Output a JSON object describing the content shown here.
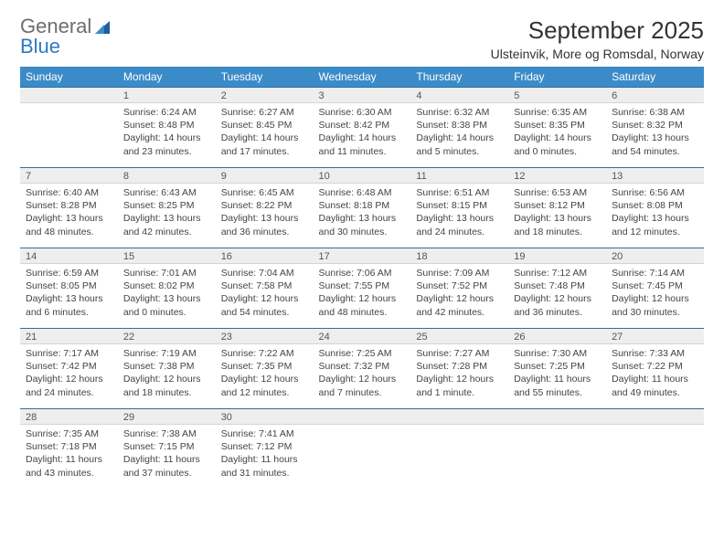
{
  "logo": {
    "word1": "General",
    "word2": "Blue"
  },
  "header": {
    "month_title": "September 2025",
    "location": "Ulsteinvik, More og Romsdal, Norway"
  },
  "colors": {
    "header_bg": "#3b8bc9",
    "header_text": "#ffffff",
    "daynum_bg": "#eeeeee",
    "daynum_border_top": "#2c6fa6",
    "logo_gray": "#6d6d6d",
    "logo_blue": "#2c7ac0"
  },
  "weekdays": [
    "Sunday",
    "Monday",
    "Tuesday",
    "Wednesday",
    "Thursday",
    "Friday",
    "Saturday"
  ],
  "weeks": [
    [
      {
        "n": "",
        "sr": "",
        "ss": "",
        "dl": ""
      },
      {
        "n": "1",
        "sr": "Sunrise: 6:24 AM",
        "ss": "Sunset: 8:48 PM",
        "dl": "Daylight: 14 hours and 23 minutes."
      },
      {
        "n": "2",
        "sr": "Sunrise: 6:27 AM",
        "ss": "Sunset: 8:45 PM",
        "dl": "Daylight: 14 hours and 17 minutes."
      },
      {
        "n": "3",
        "sr": "Sunrise: 6:30 AM",
        "ss": "Sunset: 8:42 PM",
        "dl": "Daylight: 14 hours and 11 minutes."
      },
      {
        "n": "4",
        "sr": "Sunrise: 6:32 AM",
        "ss": "Sunset: 8:38 PM",
        "dl": "Daylight: 14 hours and 5 minutes."
      },
      {
        "n": "5",
        "sr": "Sunrise: 6:35 AM",
        "ss": "Sunset: 8:35 PM",
        "dl": "Daylight: 14 hours and 0 minutes."
      },
      {
        "n": "6",
        "sr": "Sunrise: 6:38 AM",
        "ss": "Sunset: 8:32 PM",
        "dl": "Daylight: 13 hours and 54 minutes."
      }
    ],
    [
      {
        "n": "7",
        "sr": "Sunrise: 6:40 AM",
        "ss": "Sunset: 8:28 PM",
        "dl": "Daylight: 13 hours and 48 minutes."
      },
      {
        "n": "8",
        "sr": "Sunrise: 6:43 AM",
        "ss": "Sunset: 8:25 PM",
        "dl": "Daylight: 13 hours and 42 minutes."
      },
      {
        "n": "9",
        "sr": "Sunrise: 6:45 AM",
        "ss": "Sunset: 8:22 PM",
        "dl": "Daylight: 13 hours and 36 minutes."
      },
      {
        "n": "10",
        "sr": "Sunrise: 6:48 AM",
        "ss": "Sunset: 8:18 PM",
        "dl": "Daylight: 13 hours and 30 minutes."
      },
      {
        "n": "11",
        "sr": "Sunrise: 6:51 AM",
        "ss": "Sunset: 8:15 PM",
        "dl": "Daylight: 13 hours and 24 minutes."
      },
      {
        "n": "12",
        "sr": "Sunrise: 6:53 AM",
        "ss": "Sunset: 8:12 PM",
        "dl": "Daylight: 13 hours and 18 minutes."
      },
      {
        "n": "13",
        "sr": "Sunrise: 6:56 AM",
        "ss": "Sunset: 8:08 PM",
        "dl": "Daylight: 13 hours and 12 minutes."
      }
    ],
    [
      {
        "n": "14",
        "sr": "Sunrise: 6:59 AM",
        "ss": "Sunset: 8:05 PM",
        "dl": "Daylight: 13 hours and 6 minutes."
      },
      {
        "n": "15",
        "sr": "Sunrise: 7:01 AM",
        "ss": "Sunset: 8:02 PM",
        "dl": "Daylight: 13 hours and 0 minutes."
      },
      {
        "n": "16",
        "sr": "Sunrise: 7:04 AM",
        "ss": "Sunset: 7:58 PM",
        "dl": "Daylight: 12 hours and 54 minutes."
      },
      {
        "n": "17",
        "sr": "Sunrise: 7:06 AM",
        "ss": "Sunset: 7:55 PM",
        "dl": "Daylight: 12 hours and 48 minutes."
      },
      {
        "n": "18",
        "sr": "Sunrise: 7:09 AM",
        "ss": "Sunset: 7:52 PM",
        "dl": "Daylight: 12 hours and 42 minutes."
      },
      {
        "n": "19",
        "sr": "Sunrise: 7:12 AM",
        "ss": "Sunset: 7:48 PM",
        "dl": "Daylight: 12 hours and 36 minutes."
      },
      {
        "n": "20",
        "sr": "Sunrise: 7:14 AM",
        "ss": "Sunset: 7:45 PM",
        "dl": "Daylight: 12 hours and 30 minutes."
      }
    ],
    [
      {
        "n": "21",
        "sr": "Sunrise: 7:17 AM",
        "ss": "Sunset: 7:42 PM",
        "dl": "Daylight: 12 hours and 24 minutes."
      },
      {
        "n": "22",
        "sr": "Sunrise: 7:19 AM",
        "ss": "Sunset: 7:38 PM",
        "dl": "Daylight: 12 hours and 18 minutes."
      },
      {
        "n": "23",
        "sr": "Sunrise: 7:22 AM",
        "ss": "Sunset: 7:35 PM",
        "dl": "Daylight: 12 hours and 12 minutes."
      },
      {
        "n": "24",
        "sr": "Sunrise: 7:25 AM",
        "ss": "Sunset: 7:32 PM",
        "dl": "Daylight: 12 hours and 7 minutes."
      },
      {
        "n": "25",
        "sr": "Sunrise: 7:27 AM",
        "ss": "Sunset: 7:28 PM",
        "dl": "Daylight: 12 hours and 1 minute."
      },
      {
        "n": "26",
        "sr": "Sunrise: 7:30 AM",
        "ss": "Sunset: 7:25 PM",
        "dl": "Daylight: 11 hours and 55 minutes."
      },
      {
        "n": "27",
        "sr": "Sunrise: 7:33 AM",
        "ss": "Sunset: 7:22 PM",
        "dl": "Daylight: 11 hours and 49 minutes."
      }
    ],
    [
      {
        "n": "28",
        "sr": "Sunrise: 7:35 AM",
        "ss": "Sunset: 7:18 PM",
        "dl": "Daylight: 11 hours and 43 minutes."
      },
      {
        "n": "29",
        "sr": "Sunrise: 7:38 AM",
        "ss": "Sunset: 7:15 PM",
        "dl": "Daylight: 11 hours and 37 minutes."
      },
      {
        "n": "30",
        "sr": "Sunrise: 7:41 AM",
        "ss": "Sunset: 7:12 PM",
        "dl": "Daylight: 11 hours and 31 minutes."
      },
      {
        "n": "",
        "sr": "",
        "ss": "",
        "dl": ""
      },
      {
        "n": "",
        "sr": "",
        "ss": "",
        "dl": ""
      },
      {
        "n": "",
        "sr": "",
        "ss": "",
        "dl": ""
      },
      {
        "n": "",
        "sr": "",
        "ss": "",
        "dl": ""
      }
    ]
  ]
}
